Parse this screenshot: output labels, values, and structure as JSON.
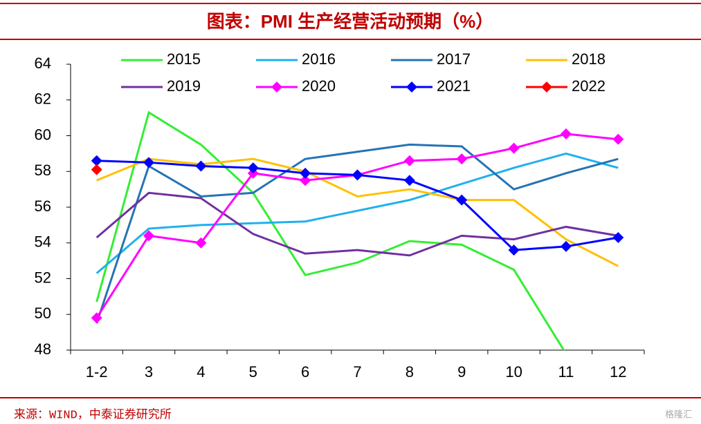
{
  "chart_data": {
    "type": "line",
    "title": "图表：PMI 生产经营活动预期（%）",
    "source": "来源：WIND，中泰证券研究所",
    "watermark": "格隆汇",
    "categories": [
      "1-2",
      "3",
      "4",
      "5",
      "6",
      "7",
      "8",
      "9",
      "10",
      "11",
      "12"
    ],
    "series": [
      {
        "name": "2015",
        "color": "#33ee33",
        "marker": "none",
        "values": [
          50.7,
          61.3,
          59.5,
          56.8,
          52.2,
          52.9,
          54.1,
          53.9,
          52.5,
          47.8,
          null
        ]
      },
      {
        "name": "2016",
        "color": "#1fb0ee",
        "marker": "none",
        "values": [
          52.3,
          54.8,
          55.0,
          55.1,
          55.2,
          55.8,
          56.4,
          57.3,
          58.2,
          59.0,
          58.2
        ]
      },
      {
        "name": "2017",
        "color": "#2473b4",
        "marker": "none",
        "values": [
          49.5,
          58.3,
          56.6,
          56.8,
          58.7,
          59.1,
          59.5,
          59.4,
          57.0,
          57.9,
          58.7
        ]
      },
      {
        "name": "2018",
        "color": "#ffc000",
        "marker": "none",
        "values": [
          57.5,
          58.7,
          58.4,
          58.7,
          58.0,
          56.6,
          57.0,
          56.4,
          56.4,
          54.2,
          52.7
        ]
      },
      {
        "name": "2019",
        "color": "#7030a0",
        "marker": "none",
        "values": [
          54.3,
          56.8,
          56.5,
          54.5,
          53.4,
          53.6,
          53.3,
          54.4,
          54.2,
          54.9,
          54.4
        ]
      },
      {
        "name": "2020",
        "color": "#ff00ff",
        "marker": "diamond",
        "values": [
          49.8,
          54.4,
          54.0,
          57.9,
          57.5,
          57.8,
          58.6,
          58.7,
          59.3,
          60.1,
          59.8
        ]
      },
      {
        "name": "2021",
        "color": "#0000ff",
        "marker": "diamond",
        "values": [
          58.6,
          58.5,
          58.3,
          58.2,
          57.9,
          57.8,
          57.5,
          56.4,
          53.6,
          53.8,
          54.3
        ]
      },
      {
        "name": "2022",
        "color": "#ff0000",
        "marker": "diamond",
        "values": [
          58.1,
          null,
          null,
          null,
          null,
          null,
          null,
          null,
          null,
          null,
          null
        ]
      }
    ],
    "ylim": [
      48,
      64
    ],
    "yticks": [
      48,
      50,
      52,
      54,
      56,
      58,
      60,
      62,
      64
    ],
    "grid": false
  }
}
